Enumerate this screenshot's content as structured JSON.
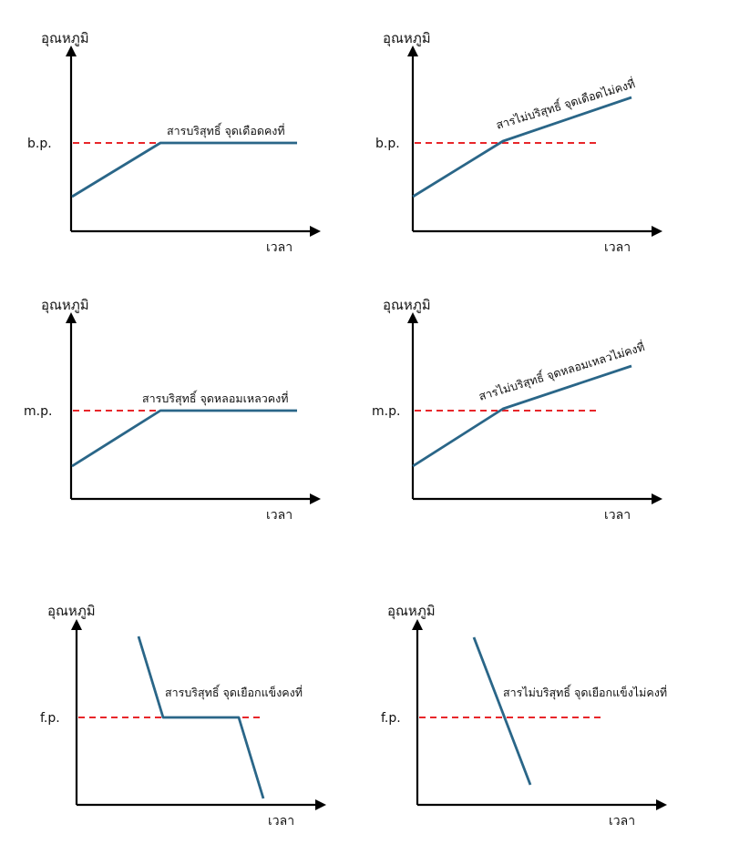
{
  "panels": [
    {
      "key": "bp_pure",
      "y_axis_label": "อุณหภูมิ",
      "x_axis_label": "เวลา",
      "ref_label": "b.p.",
      "annotation": "สารบริสุทธิ์ จุดเดือดคงที่"
    },
    {
      "key": "bp_impure",
      "y_axis_label": "อุณหภูมิ",
      "x_axis_label": "เวลา",
      "ref_label": "b.p.",
      "annotation": "สารไม่บริสุทธิ์ จุดเดือดไม่คงที่"
    },
    {
      "key": "mp_pure",
      "y_axis_label": "อุณหภูมิ",
      "x_axis_label": "เวลา",
      "ref_label": "m.p.",
      "annotation": "สารบริสุทธิ์ จุดหลอมเหลวคงที่"
    },
    {
      "key": "mp_impure",
      "y_axis_label": "อุณหภูมิ",
      "x_axis_label": "เวลา",
      "ref_label": "m.p.",
      "annotation": "สารไม่บริสุทธิ์ จุดหลอมเหลวไม่คงที่"
    },
    {
      "key": "fp_pure",
      "y_axis_label": "อุณหภูมิ",
      "x_axis_label": "เวลา",
      "ref_label": "f.p.",
      "annotation": "สารบริสุทธิ์ จุดเยือกแข็งคงที่"
    },
    {
      "key": "fp_impure",
      "y_axis_label": "อุณหภูมิ",
      "x_axis_label": "เวลา",
      "ref_label": "f.p.",
      "annotation": "สารไม่บริสุทธิ์ จุดเยือกแข็งไม่คงที่"
    }
  ],
  "colors": {
    "axis": "#000000",
    "reference_line": "#e8262a",
    "curve": "#2a6688"
  }
}
